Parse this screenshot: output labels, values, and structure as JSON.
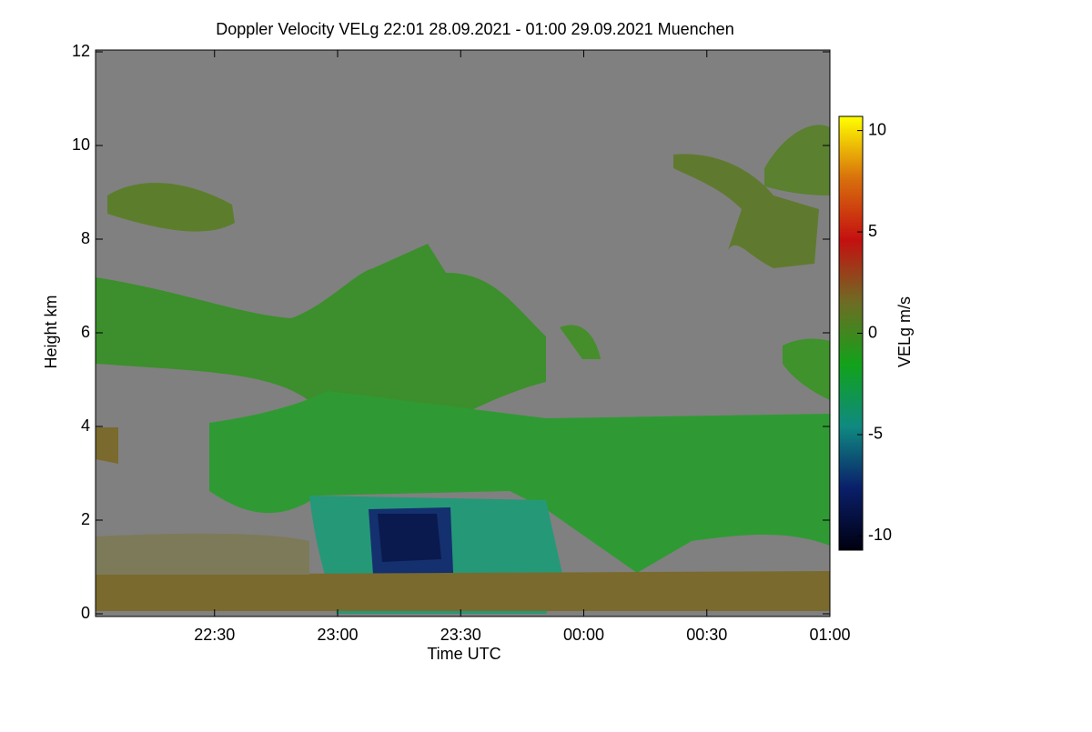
{
  "chart_data": {
    "type": "heatmap",
    "title": "Doppler Velocity VELg   22:01 28.09.2021 - 01:00 29.09.2021 Muenchen",
    "x_label": "Time UTC",
    "y_label": "Height km",
    "colorbar_label": "VELg m/s",
    "xlim": [
      1,
      180
    ],
    "xticks": [
      {
        "value": 30,
        "label": "22:30"
      },
      {
        "value": 60,
        "label": "23:00"
      },
      {
        "value": 90,
        "label": "23:30"
      },
      {
        "value": 120,
        "label": "00:00"
      },
      {
        "value": 150,
        "label": "00:30"
      },
      {
        "value": 180,
        "label": "01:00"
      }
    ],
    "ylim": [
      0,
      12
    ],
    "yticks": [
      0,
      2,
      4,
      6,
      8,
      10,
      12
    ],
    "clim": [
      -10.7,
      10.7
    ],
    "cticks": [
      -10,
      -5,
      0,
      5,
      10
    ],
    "colorscale": [
      "#000010",
      "#0a1f6a",
      "#0f8a80",
      "#12a21a",
      "#6e6c24",
      "#c41010",
      "#d8700c",
      "#ffff00"
    ],
    "background": "#808080"
  }
}
